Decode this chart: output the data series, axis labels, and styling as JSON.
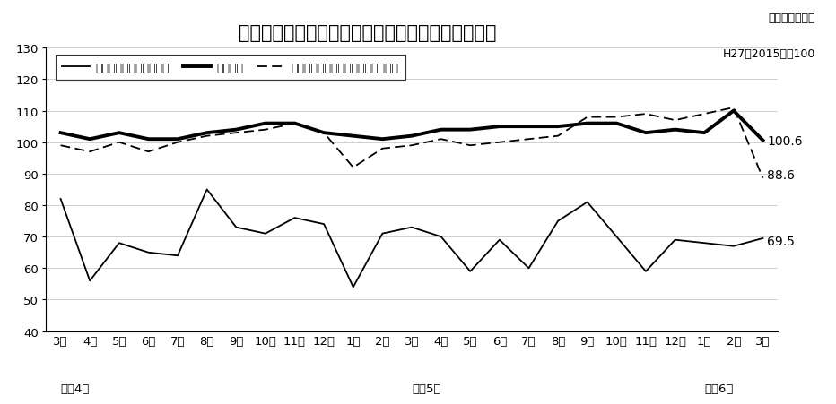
{
  "title": "食料品工業（畜産関係・飲料・その他）の生産指数",
  "subtitle_line1": "季節調整済指数",
  "subtitle_line2": "H27（2015）＝100",
  "x_labels": [
    "3月",
    "4月",
    "5月",
    "6月",
    "7月",
    "8月",
    "9月",
    "10月",
    "11月",
    "12月",
    "1月",
    "2月",
    "3月",
    "4月",
    "5月",
    "6月",
    "7月",
    "8月",
    "9月",
    "10月",
    "11月",
    "12月",
    "1月",
    "2月",
    "3月"
  ],
  "year_labels": [
    {
      "text": "令和4年",
      "index": 0
    },
    {
      "text": "令和5年",
      "index": 12
    },
    {
      "text": "令和6年",
      "index": 22
    }
  ],
  "ylim": [
    40,
    130
  ],
  "yticks": [
    40,
    50,
    60,
    70,
    80,
    90,
    100,
    110,
    120,
    130
  ],
  "drink_data": [
    82,
    56,
    68,
    65,
    64,
    85,
    73,
    71,
    76,
    74,
    54,
    71,
    73,
    70,
    59,
    69,
    60,
    75,
    81,
    70,
    59,
    69,
    68,
    67,
    69.5
  ],
  "livestock_data": [
    103,
    101,
    103,
    101,
    101,
    103,
    104,
    106,
    106,
    103,
    102,
    101,
    102,
    104,
    104,
    105,
    105,
    105,
    106,
    106,
    103,
    104,
    103,
    110,
    100.6
  ],
  "food_data": [
    99,
    97,
    100,
    97,
    100,
    102,
    103,
    104,
    106,
    103,
    92,
    98,
    99,
    101,
    99,
    100,
    101,
    102,
    108,
    108,
    109,
    107,
    109,
    111,
    88.6
  ],
  "drink_label": "飲料（焼酎・清涼飲料）",
  "livestock_label": "畜産関係",
  "food_label": "食料品工業（除く畜産関係・飲料）",
  "ann_100_6": "100.6",
  "ann_88_6": "88.6",
  "ann_69_5": "69.5",
  "background_color": "#ffffff",
  "grid_color": "#c8c8c8",
  "title_fontsize": 15,
  "subtitle_fontsize": 9,
  "tick_fontsize": 9.5,
  "legend_fontsize": 9,
  "ann_fontsize": 10
}
